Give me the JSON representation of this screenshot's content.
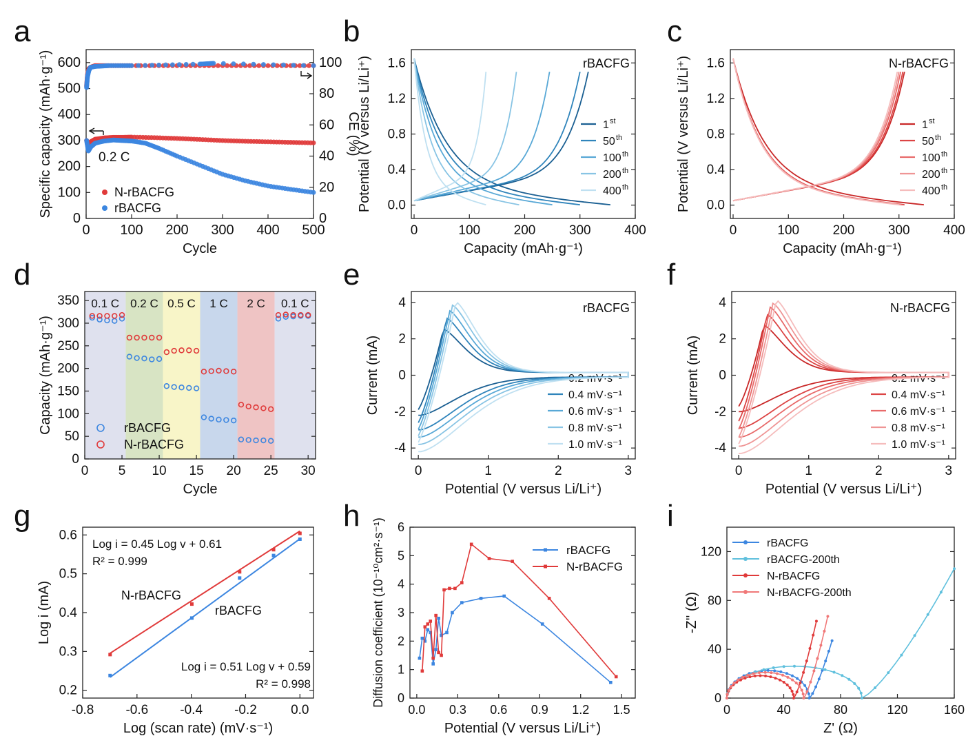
{
  "colors": {
    "red": "#e03a3a",
    "blue": "#3c86e0",
    "red_series": [
      "#c92828",
      "#dc4444",
      "#e86a6a",
      "#ef9595",
      "#f5bcbc"
    ],
    "blue_series": [
      "#1a5f92",
      "#2f84bb",
      "#58a8d6",
      "#88c4e4",
      "#bfe0f1"
    ],
    "rate_bands": [
      "#dfe1ee",
      "#d8e4c4",
      "#f8f5c8",
      "#c8d7ec",
      "#efc4c4",
      "#dfe1ee"
    ]
  },
  "panels": {
    "a": {
      "letter": "a",
      "chart_data": {
        "type": "scatter",
        "xlabel": "Cycle",
        "ylabel": "Specific capacity (mAh·g⁻¹)",
        "y2label": "CE (%)",
        "xlim": [
          0,
          500
        ],
        "ylim": [
          0,
          650
        ],
        "y2lim": [
          0,
          108.3
        ],
        "xticks": [
          "0",
          "100",
          "200",
          "300",
          "400",
          "500"
        ],
        "yticks": [
          "0",
          "100",
          "200",
          "300",
          "400",
          "500",
          "600"
        ],
        "y2ticks": [
          "0",
          "20",
          "40",
          "60",
          "80",
          "100"
        ],
        "annotation": "0.2 C",
        "series": [
          {
            "name": "N-rBACFG",
            "x": [
              1,
              5,
              10,
              20,
              40,
              60,
              80,
              100,
              150,
              200,
              250,
              300,
              350,
              400,
              450,
              500
            ],
            "y": [
              300,
              282,
              295,
              305,
              310,
              312,
              312,
              313,
              311,
              308,
              304,
              300,
              297,
              295,
              293,
              291
            ]
          },
          {
            "name": "rBACFG",
            "x": [
              1,
              5,
              10,
              20,
              40,
              60,
              80,
              100,
              130,
              160,
              200,
              250,
              300,
              350,
              400,
              450,
              500
            ],
            "y": [
              300,
              260,
              275,
              290,
              298,
              302,
              300,
              298,
              290,
              270,
              240,
              205,
              170,
              145,
              125,
              112,
              100
            ]
          },
          {
            "name": "CE N-rBACFG",
            "x": [
              1,
              3,
              6,
              10,
              20,
              50,
              100,
              200,
              300,
              400,
              500
            ],
            "y": [
              85,
              92,
              96,
              97,
              98,
              98,
              98,
              98,
              98,
              98,
              98
            ]
          },
          {
            "name": "CE rBACFG",
            "x": [
              1,
              3,
              6,
              10,
              20,
              50,
              100,
              250,
              280,
              500
            ],
            "y": [
              84,
              91,
              95,
              97,
              97.5,
              98,
              98,
              99,
              99.5,
              98
            ]
          }
        ]
      }
    },
    "b": {
      "letter": "b",
      "title": "rBACFG",
      "chart_data": {
        "type": "line",
        "xlabel": "Capacity (mAh·g⁻¹)",
        "ylabel": "Potential (V versus Li/Li⁺)",
        "xlim": [
          -5,
          400
        ],
        "ylim": [
          -0.15,
          1.75
        ],
        "xticks": [
          "0",
          "100",
          "200",
          "300",
          "400"
        ],
        "yticks": [
          "0.0",
          "0.4",
          "0.8",
          "1.2",
          "1.6"
        ],
        "series": [
          {
            "name": "1",
            "sup": "st",
            "charge_cap": 315,
            "discharge_cap": 355
          },
          {
            "name": "50",
            "sup": "th",
            "charge_cap": 300,
            "discharge_cap": 300
          },
          {
            "name": "100",
            "sup": "th",
            "charge_cap": 245,
            "discharge_cap": 250
          },
          {
            "name": "200",
            "sup": "th",
            "charge_cap": 185,
            "discharge_cap": 190
          },
          {
            "name": "400",
            "sup": "th",
            "charge_cap": 130,
            "discharge_cap": 130
          }
        ]
      }
    },
    "c": {
      "letter": "c",
      "title": "N-rBACFG",
      "chart_data": {
        "type": "line",
        "xlabel": "Capacity (mAh·g⁻¹)",
        "ylabel": "Potential (V versus Li/Li⁺)",
        "xlim": [
          -5,
          400
        ],
        "ylim": [
          -0.15,
          1.75
        ],
        "xticks": [
          "0",
          "100",
          "200",
          "300",
          "400"
        ],
        "yticks": [
          "0.0",
          "0.4",
          "0.8",
          "1.2",
          "1.6"
        ],
        "series": [
          {
            "name": "1",
            "sup": "st",
            "charge_cap": 310,
            "discharge_cap": 345
          },
          {
            "name": "50",
            "sup": "th",
            "charge_cap": 307,
            "discharge_cap": 310
          },
          {
            "name": "100",
            "sup": "th",
            "charge_cap": 303,
            "discharge_cap": 306
          },
          {
            "name": "200",
            "sup": "th",
            "charge_cap": 300,
            "discharge_cap": 303
          },
          {
            "name": "400",
            "sup": "th",
            "charge_cap": 297,
            "discharge_cap": 300
          }
        ]
      }
    },
    "d": {
      "letter": "d",
      "chart_data": {
        "type": "scatter",
        "xlabel": "Cycle",
        "ylabel": "Capacity (mAh·g⁻¹)",
        "xlim": [
          0,
          31
        ],
        "ylim": [
          0,
          370
        ],
        "xticks": [
          "0",
          "5",
          "10",
          "15",
          "20",
          "25",
          "30"
        ],
        "yticks": [
          "0",
          "50",
          "100",
          "150",
          "200",
          "250",
          "300",
          "350"
        ],
        "rate_labels": [
          "0.1 C",
          "0.2 C",
          "0.5 C",
          "1 C",
          "2 C",
          "0.1 C"
        ],
        "series": [
          {
            "name": "rBACFG",
            "x": [
              1,
              2,
              3,
              4,
              5,
              6,
              7,
              8,
              9,
              10,
              11,
              12,
              13,
              14,
              15,
              16,
              17,
              18,
              19,
              20,
              21,
              22,
              23,
              24,
              25,
              26,
              27,
              28,
              29,
              30
            ],
            "y": [
              312,
              308,
              306,
              305,
              310,
              226,
              223,
              222,
              220,
              221,
              161,
              159,
              158,
              157,
              156,
              92,
              89,
              87,
              86,
              85,
              43,
              42,
              41,
              41,
              40,
              310,
              314,
              315,
              316,
              316
            ]
          },
          {
            "name": "N-rBACFG",
            "x": [
              1,
              2,
              3,
              4,
              5,
              6,
              7,
              8,
              9,
              10,
              11,
              12,
              13,
              14,
              15,
              16,
              17,
              18,
              19,
              20,
              21,
              22,
              23,
              24,
              25,
              26,
              27,
              28,
              29,
              30
            ],
            "y": [
              316,
              316,
              316,
              316,
              318,
              268,
              268,
              268,
              268,
              268,
              236,
              239,
              240,
              240,
              239,
              193,
              194,
              195,
              194,
              193,
              120,
              116,
              114,
              112,
              110,
              318,
              319,
              318,
              318,
              318
            ]
          }
        ]
      }
    },
    "e": {
      "letter": "e",
      "title": "rBACFG",
      "chart_data": {
        "type": "line",
        "xlabel": "Potential (V versus Li/Li⁺)",
        "ylabel": "Current (mA)",
        "xlim": [
          -0.1,
          3.1
        ],
        "ylim": [
          -4.6,
          4.6
        ],
        "xticks": [
          "0",
          "1",
          "2",
          "3"
        ],
        "yticks": [
          "-4",
          "-2",
          "0",
          "2",
          "4"
        ],
        "series": [
          {
            "name": "0.2 mV·s⁻¹",
            "peak_ox": 2.4,
            "peak_red": -2.1
          },
          {
            "name": "0.4 mV·s⁻¹",
            "peak_ox": 3.0,
            "peak_red": -2.9
          },
          {
            "name": "0.6 mV·s⁻¹",
            "peak_ox": 3.4,
            "peak_red": -3.3
          },
          {
            "name": "0.8 mV·s⁻¹",
            "peak_ox": 3.7,
            "peak_red": -3.7
          },
          {
            "name": "1.0 mV·s⁻¹",
            "peak_ox": 3.9,
            "peak_red": -4.1
          }
        ]
      }
    },
    "f": {
      "letter": "f",
      "title": "N-rBACFG",
      "chart_data": {
        "type": "line",
        "xlabel": "Potential (V versus Li/Li⁺)",
        "ylabel": "Current (mA)",
        "xlim": [
          -0.1,
          3.1
        ],
        "ylim": [
          -4.6,
          4.6
        ],
        "xticks": [
          "0",
          "1",
          "2",
          "3"
        ],
        "yticks": [
          "-4",
          "-2",
          "0",
          "2",
          "4"
        ],
        "series": [
          {
            "name": "0.2 mV·s⁻¹",
            "peak_ox": 2.6,
            "peak_red": -1.9
          },
          {
            "name": "0.4 mV·s⁻¹",
            "peak_ox": 3.2,
            "peak_red": -2.8
          },
          {
            "name": "0.6 mV·s⁻¹",
            "peak_ox": 3.6,
            "peak_red": -3.3
          },
          {
            "name": "0.8 mV·s⁻¹",
            "peak_ox": 3.8,
            "peak_red": -3.8
          },
          {
            "name": "1.0 mV·s⁻¹",
            "peak_ox": 4.0,
            "peak_red": -4.2
          }
        ]
      }
    },
    "g": {
      "letter": "g",
      "chart_data": {
        "type": "scatter",
        "xlabel": "Log (scan rate) (mV·s⁻¹)",
        "ylabel": "Log i (mA)",
        "xlim": [
          -0.8,
          0.05
        ],
        "ylim": [
          0.18,
          0.62
        ],
        "xticks": [
          "-0.8",
          "-0.6",
          "-0.4",
          "-0.2",
          "0.0"
        ],
        "yticks": [
          "0.2",
          "0.3",
          "0.4",
          "0.5",
          "0.6"
        ],
        "fit_label_red": "N-rBACFG",
        "fit_label_blue": "rBACFG",
        "eq_red": "Log i = 0.45 Log v + 0.61",
        "r2_red": "R² = 0.999",
        "eq_blue": "Log i = 0.51 Log v + 0.59",
        "r2_blue": "R² = 0.998",
        "series": [
          {
            "name": "N-rBACFG",
            "x": [
              -0.699,
              -0.398,
              -0.222,
              -0.097,
              0.0
            ],
            "y": [
              0.292,
              0.422,
              0.505,
              0.562,
              0.604
            ],
            "fit": {
              "slope": 0.45,
              "intercept": 0.61
            }
          },
          {
            "name": "rBACFG",
            "x": [
              -0.699,
              -0.398,
              -0.222,
              -0.097,
              0.0
            ],
            "y": [
              0.238,
              0.386,
              0.489,
              0.547,
              0.589
            ],
            "fit": {
              "slope": 0.51,
              "intercept": 0.59
            }
          }
        ]
      }
    },
    "h": {
      "letter": "h",
      "chart_data": {
        "type": "line",
        "xlabel": "Potential (V versus Li/Li⁺)",
        "ylabel": "Diffusion coefficient (10⁻¹⁰cm²·s⁻¹)",
        "xlim": [
          -0.05,
          1.6
        ],
        "ylim": [
          0,
          6
        ],
        "xticks": [
          "0.0",
          "0.3",
          "0.6",
          "0.9",
          "1.2",
          "1.5"
        ],
        "yticks": [
          "0",
          "1",
          "2",
          "3",
          "4",
          "5",
          "6"
        ],
        "series": [
          {
            "name": "rBACFG",
            "x": [
              0.02,
              0.04,
              0.06,
              0.08,
              0.1,
              0.12,
              0.14,
              0.16,
              0.18,
              0.22,
              0.26,
              0.33,
              0.47,
              0.64,
              0.92,
              1.42
            ],
            "y": [
              1.4,
              2.1,
              2.0,
              2.4,
              2.3,
              1.2,
              1.7,
              2.8,
              2.2,
              2.3,
              3.0,
              3.35,
              3.5,
              3.58,
              2.6,
              0.55
            ]
          },
          {
            "name": "N-rBACFG",
            "x": [
              0.04,
              0.06,
              0.08,
              0.1,
              0.12,
              0.14,
              0.16,
              0.18,
              0.2,
              0.24,
              0.28,
              0.33,
              0.4,
              0.53,
              0.7,
              0.97,
              1.46
            ],
            "y": [
              0.95,
              2.5,
              2.6,
              2.7,
              1.4,
              2.9,
              1.6,
              1.5,
              3.8,
              3.85,
              3.85,
              4.05,
              5.4,
              4.9,
              4.8,
              3.5,
              0.75
            ]
          }
        ]
      }
    },
    "i": {
      "letter": "i",
      "chart_data": {
        "type": "line",
        "xlabel": "Z' (Ω)",
        "ylabel": "-Z'' (Ω)",
        "xlim": [
          0,
          160
        ],
        "ylim": [
          0,
          140
        ],
        "xticks": [
          "0",
          "40",
          "80",
          "120",
          "160"
        ],
        "yticks": [
          "0",
          "40",
          "80",
          "120"
        ],
        "series": [
          {
            "name": "rBACFG",
            "semicircle_end": 58,
            "tail_end_x": 74,
            "tail_end_y": 47
          },
          {
            "name": "rBACFG-200th",
            "semicircle_end": 95,
            "tail_end_x": 160,
            "tail_end_y": 106
          },
          {
            "name": "N-rBACFG",
            "semicircle_end": 47,
            "tail_end_x": 63,
            "tail_end_y": 63
          },
          {
            "name": "N-rBACFG-200th",
            "semicircle_end": 54,
            "tail_end_x": 71,
            "tail_end_y": 67
          }
        ]
      }
    }
  }
}
